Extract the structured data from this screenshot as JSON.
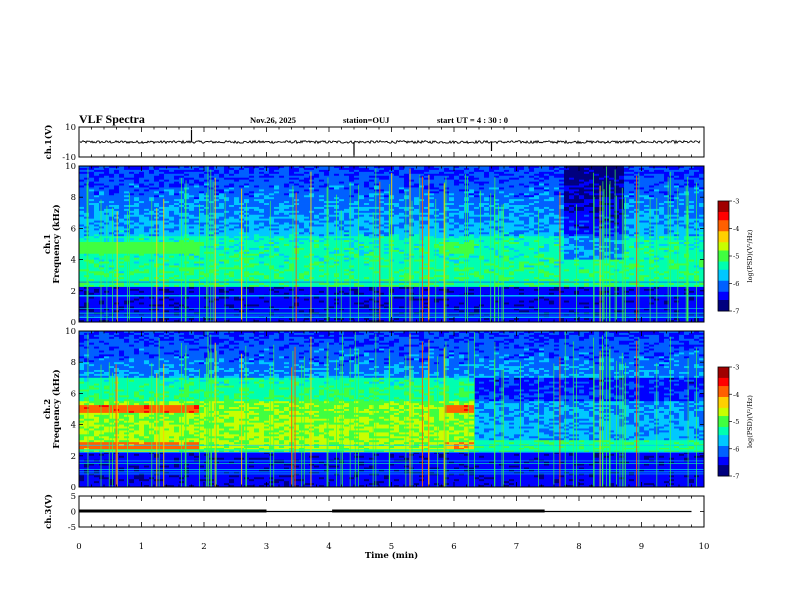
{
  "header": {
    "title": "VLF Spectra",
    "date": "Nov.26, 2025",
    "station": "station=OUJ",
    "start": "start  UT =   4 : 30 : 0"
  },
  "colors": {
    "axis": "#000000",
    "trace": "#000000",
    "colormap": [
      "#00007f",
      "#0000ff",
      "#0060ff",
      "#00c8ff",
      "#00ffb0",
      "#40ff40",
      "#c8ff00",
      "#ffd000",
      "#ff6000",
      "#ff0000",
      "#a00000"
    ]
  },
  "chart_data": [
    {
      "type": "line",
      "id": "ch1",
      "ylabel": "ch.1(V)",
      "ylim": [
        -10,
        10
      ],
      "yticks": [
        "10",
        "-10"
      ],
      "baseline": 0,
      "spikes": [
        {
          "t": 1.8,
          "v": 8
        },
        {
          "t": 4.4,
          "v": -9
        },
        {
          "t": 6.6,
          "v": -6
        }
      ]
    },
    {
      "type": "heatmap",
      "id": "ch1_spec",
      "ylabel": "ch.1\nFrequency (kHz)",
      "ylabel_line1": "ch.1",
      "ylabel_line2": "Frequency (kHz)",
      "xlim": [
        0,
        10
      ],
      "ylim": [
        0,
        10
      ],
      "yticks": [
        "0",
        "2",
        "4",
        "6",
        "8",
        "10"
      ],
      "colorbar": {
        "label": "log(PSD)(V²/Hz)",
        "range": [
          -7,
          -3
        ],
        "ticks": [
          "-3",
          "-4",
          "-5",
          "-6",
          "-7"
        ]
      },
      "bands": [
        {
          "t0": 0.0,
          "t1": 1.9,
          "f0": 4.4,
          "f1": 5.1,
          "level": -5.0
        },
        {
          "t0": 5.8,
          "t1": 6.3,
          "f0": 4.4,
          "f1": 5.1,
          "level": -5.1
        },
        {
          "t0": 0.0,
          "t1": 10.0,
          "f0": 2.2,
          "f1": 2.3,
          "level": -5.6
        }
      ]
    },
    {
      "type": "heatmap",
      "id": "ch2_spec",
      "ylabel": "ch.2\nFrequency (kHz)",
      "ylabel_line1": "ch.2",
      "ylabel_line2": "Frequency (kHz)",
      "xlim": [
        0,
        10
      ],
      "ylim": [
        0,
        10
      ],
      "yticks": [
        "0",
        "2",
        "4",
        "6",
        "8",
        "10"
      ],
      "colorbar": {
        "label": "log(PSD)(V²/Hz)",
        "range": [
          -7,
          -3
        ],
        "ticks": [
          "-3",
          "-4",
          "-5",
          "-6",
          "-7"
        ]
      },
      "bands": [
        {
          "t0": 0.0,
          "t1": 1.9,
          "f0": 4.8,
          "f1": 5.3,
          "level": -3.8
        },
        {
          "t0": 5.85,
          "t1": 6.35,
          "f0": 4.8,
          "f1": 5.3,
          "level": -3.8
        },
        {
          "t0": 0.0,
          "t1": 1.9,
          "f0": 2.4,
          "f1": 2.9,
          "level": -4.0
        },
        {
          "t0": 5.85,
          "t1": 6.35,
          "f0": 2.4,
          "f1": 2.9,
          "level": -4.1
        }
      ]
    },
    {
      "type": "line",
      "id": "ch3",
      "ylabel": "ch.3(V)",
      "ylim": [
        -5,
        5
      ],
      "yticks": [
        "5",
        "0",
        "-5"
      ],
      "high_segments": [
        [
          0.0,
          3.0
        ],
        [
          4.05,
          7.45
        ]
      ],
      "level_high": 0.1,
      "level_low": 0.0
    }
  ],
  "xaxis": {
    "label": "Time (min)",
    "range": [
      0,
      10
    ],
    "ticks": [
      "0",
      "1",
      "2",
      "3",
      "4",
      "5",
      "6",
      "7",
      "8",
      "9",
      "10"
    ]
  }
}
